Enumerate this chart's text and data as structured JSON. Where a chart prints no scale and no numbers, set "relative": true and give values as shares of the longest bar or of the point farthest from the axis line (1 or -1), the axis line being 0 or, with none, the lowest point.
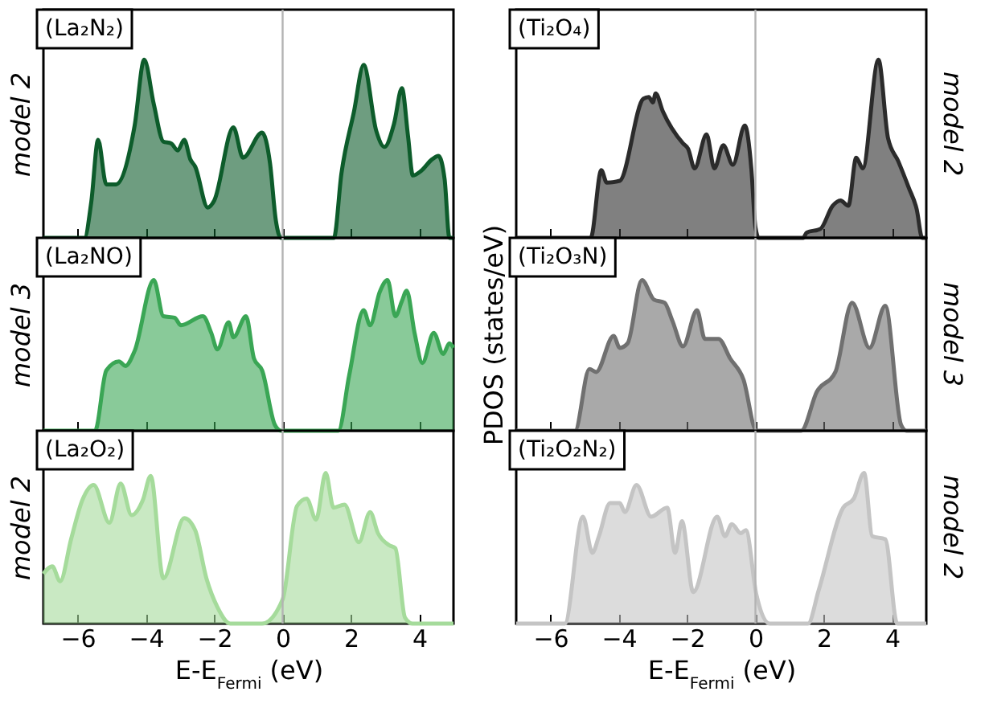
{
  "chart_data": [
    {
      "type": "area",
      "relative": true,
      "color": "#0d5c2b",
      "ylabel": "model 2",
      "annotations": [
        "(La₂N₂)"
      ],
      "xlim": [
        -7,
        5
      ],
      "xticks": [
        -6,
        -4,
        -2,
        0,
        2,
        4
      ],
      "tick_labels": false,
      "ref_lines": [
        {
          "axis": "x",
          "value": 0,
          "color": "#b3b3b3"
        }
      ],
      "x": [
        -7,
        -5.8,
        -5.6,
        -5.4,
        -5.16,
        -4.88,
        -4.33,
        -4.05,
        -3.77,
        -3.49,
        -3.26,
        -3.07,
        -2.88,
        -2.7,
        -2.56,
        -2.19,
        -2.0,
        -1.44,
        -1.16,
        -0.6,
        -0.37,
        -0.2,
        -0.05,
        1.5,
        1.72,
        2.09,
        2.37,
        2.74,
        2.98,
        3.26,
        3.49,
        3.67,
        3.81,
        4.05,
        4.37,
        4.56,
        4.74,
        4.88,
        5
      ],
      "values": [
        0,
        0,
        0.2,
        0.55,
        0.3,
        0.3,
        0.63,
        1,
        0.75,
        0.54,
        0.53,
        0.49,
        0.55,
        0.44,
        0.4,
        0.17,
        0.21,
        0.62,
        0.45,
        0.59,
        0.42,
        0.1,
        0,
        0,
        0.36,
        0.71,
        0.97,
        0.6,
        0.51,
        0.64,
        0.84,
        0.57,
        0.35,
        0.375,
        0.44,
        0.46,
        0.33,
        0,
        0
      ]
    },
    {
      "type": "area",
      "relative": true,
      "color": "#2b2b2b",
      "y2label": "model 2",
      "annotations": [
        "(Ti₂O₄)"
      ],
      "xlim": [
        -7,
        5
      ],
      "xticks": [
        -6,
        -4,
        -2,
        0,
        2,
        4
      ],
      "tick_labels": false,
      "ref_lines": [
        {
          "axis": "x",
          "value": 0,
          "color": "#b3b3b3"
        }
      ],
      "x": [
        -7,
        -4.82,
        -4.51,
        -4.35,
        -3.97,
        -3.28,
        -3.12,
        -3.0,
        -2.92,
        -2.71,
        -2.12,
        -1.97,
        -1.78,
        -1.43,
        -1.2,
        -0.94,
        -0.66,
        -0.31,
        -0.12,
        0,
        0.1,
        1.4,
        1.5,
        1.9,
        2.26,
        2.49,
        2.72,
        2.95,
        3.14,
        3.6,
        3.88,
        4.18,
        4.49,
        4.72,
        4.88,
        5
      ],
      "values": [
        0,
        0,
        0.38,
        0.31,
        0.32,
        0.78,
        0.79,
        0.76,
        0.81,
        0.71,
        0.53,
        0.5,
        0.39,
        0.58,
        0.39,
        0.52,
        0.41,
        0.63,
        0.39,
        0.06,
        0,
        0,
        0.03,
        0.05,
        0.18,
        0.21,
        0.18,
        0.45,
        0.39,
        1,
        0.56,
        0.43,
        0.28,
        0.16,
        0,
        0
      ]
    },
    {
      "type": "area",
      "relative": true,
      "color": "#3aa655",
      "ylabel": "model 3",
      "annotations": [
        "(La₂NO)"
      ],
      "xlim": [
        -7,
        5
      ],
      "xticks": [
        -6,
        -4,
        -2,
        0,
        2,
        4
      ],
      "tick_labels": false,
      "ref_lines": [
        {
          "axis": "x",
          "value": 0,
          "color": "#b3b3b3"
        }
      ],
      "x": [
        -7,
        -5.49,
        -5.16,
        -4.79,
        -4.6,
        -4.33,
        -3.77,
        -3.49,
        -3.16,
        -2.98,
        -2.33,
        -2.09,
        -1.91,
        -1.58,
        -1.44,
        -1.07,
        -0.84,
        -0.6,
        -0.23,
        -0.05,
        1.63,
        1.95,
        2.37,
        2.56,
        2.84,
        3.07,
        3.3,
        3.49,
        3.63,
        3.86,
        4.09,
        4.42,
        4.7,
        4.88,
        5
      ],
      "values": [
        0,
        0,
        0.4,
        0.46,
        0.43,
        0.53,
        1,
        0.76,
        0.75,
        0.7,
        0.76,
        0.65,
        0.54,
        0.72,
        0.62,
        0.76,
        0.48,
        0.4,
        0.04,
        0,
        0,
        0.37,
        0.8,
        0.7,
        0.92,
        1,
        0.76,
        0.86,
        0.93,
        0.65,
        0.45,
        0.65,
        0.51,
        0.58,
        0.55
      ]
    },
    {
      "type": "area",
      "relative": true,
      "color": "#707070",
      "ylabel": "PDOS (states/eV)",
      "y2label": "model 3",
      "annotations": [
        "(Ti₂O₃N)"
      ],
      "xlim": [
        -7,
        5
      ],
      "xticks": [
        -6,
        -4,
        -2,
        0,
        2,
        4
      ],
      "tick_labels": false,
      "ref_lines": [
        {
          "axis": "x",
          "value": 0,
          "color": "#b3b3b3"
        }
      ],
      "x": [
        -7,
        -5.28,
        -4.86,
        -4.66,
        -4.15,
        -3.97,
        -3.74,
        -3.32,
        -2.97,
        -2.66,
        -2.43,
        -2.12,
        -1.71,
        -1.48,
        -1.08,
        -0.74,
        -0.35,
        0.03,
        1.34,
        1.8,
        2.34,
        2.83,
        3.34,
        3.8,
        4.26,
        4.42,
        5
      ],
      "values": [
        0,
        0,
        0.41,
        0.39,
        0.63,
        0.55,
        0.58,
        1,
        0.87,
        0.85,
        0.73,
        0.56,
        0.8,
        0.61,
        0.61,
        0.48,
        0.34,
        0,
        0,
        0.26,
        0.39,
        0.85,
        0.55,
        0.83,
        0.04,
        0,
        0
      ]
    },
    {
      "type": "area",
      "relative": true,
      "color": "#a5db9b",
      "ylabel": "model 2",
      "xlabel": "E-E$_{Fermi}$ (eV)",
      "annotations": [
        "(La₂O₂)"
      ],
      "xlim": [
        -7,
        5
      ],
      "xticks": [
        -6,
        -4,
        -2,
        0,
        2,
        4
      ],
      "tick_labels": "x",
      "ref_lines": [
        {
          "axis": "x",
          "value": 0,
          "color": "#b3b3b3"
        }
      ],
      "x": [
        -7,
        -6.74,
        -6.51,
        -6.19,
        -5.86,
        -5.53,
        -5.07,
        -4.74,
        -4.42,
        -4.09,
        -3.86,
        -3.49,
        -2.88,
        -2.56,
        -2.23,
        -1.91,
        -1.53,
        -0.6,
        0,
        0.42,
        0.7,
        0.98,
        1.26,
        1.49,
        1.81,
        2.23,
        2.56,
        2.79,
        3.12,
        3.3,
        3.58,
        3.8,
        5
      ],
      "values": [
        0.33,
        0.38,
        0.28,
        0.56,
        0.82,
        0.92,
        0.67,
        0.93,
        0.72,
        0.82,
        0.98,
        0.3,
        0.7,
        0.62,
        0.3,
        0.11,
        0,
        0,
        0.16,
        0.78,
        0.83,
        0.69,
        1,
        0.77,
        0.79,
        0.54,
        0.74,
        0.6,
        0.52,
        0.5,
        0.04,
        0,
        0
      ]
    },
    {
      "type": "area",
      "relative": true,
      "color": "#c4c4c4",
      "y2label": "model 2",
      "xlabel": "E-E$_{Fermi}$ (eV)",
      "annotations": [
        "(Ti₂O₂N₂)"
      ],
      "xlim": [
        -7,
        5
      ],
      "xticks": [
        -6,
        -4,
        -2,
        0,
        2,
        4
      ],
      "tick_labels": "x",
      "ref_lines": [
        {
          "axis": "x",
          "value": 0,
          "color": "#b3b3b3"
        }
      ],
      "x": [
        -7,
        -5.58,
        -5.05,
        -4.77,
        -4.58,
        -4.25,
        -3.97,
        -3.82,
        -3.48,
        -3.05,
        -2.58,
        -2.35,
        -2.15,
        -1.82,
        -1.12,
        -0.89,
        -0.69,
        -0.43,
        -0.28,
        0.03,
        0.42,
        1.54,
        1.85,
        2.57,
        2.88,
        3.18,
        3.42,
        3.8,
        4.15,
        5
      ],
      "values": [
        0,
        0,
        0.71,
        0.47,
        0.58,
        0.8,
        0.8,
        0.74,
        0.92,
        0.71,
        0.77,
        0.47,
        0.68,
        0.21,
        0.71,
        0.58,
        0.66,
        0.6,
        0.62,
        0.19,
        0,
        0,
        0.22,
        0.77,
        0.83,
        1,
        0.58,
        0.56,
        0,
        0
      ]
    }
  ]
}
